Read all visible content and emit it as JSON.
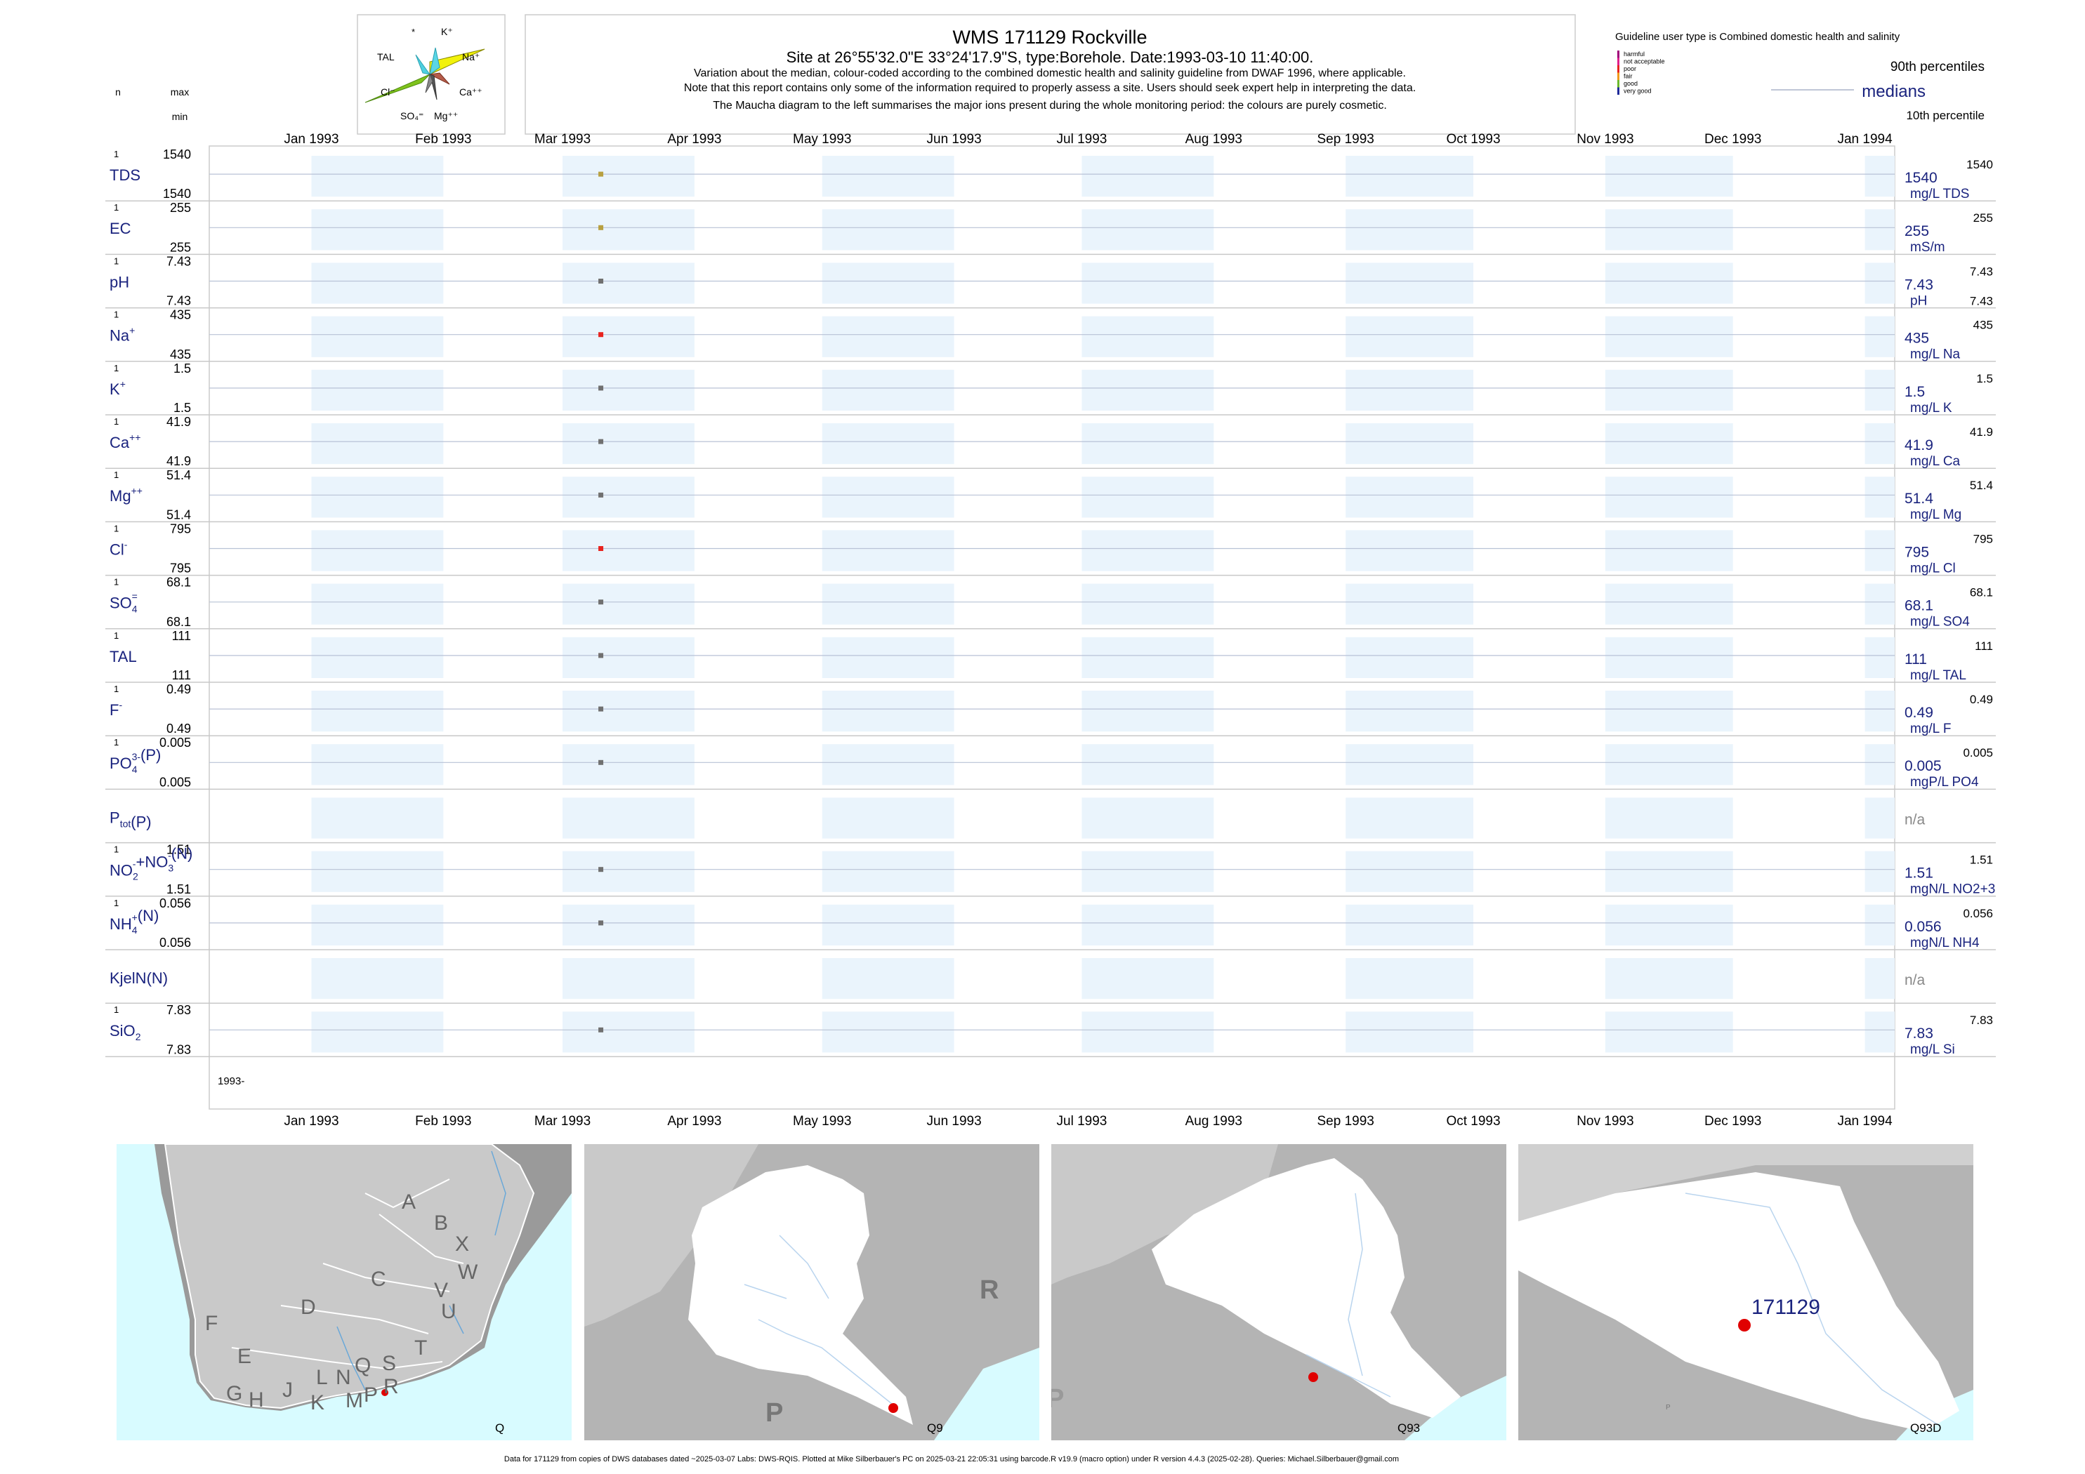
{
  "header": {
    "title": "WMS 171129  Rockville",
    "subtitle": "Site at 26°55'32.0\"E 33°24'17.9\"S, type:Borehole. Date:1993-03-10 11:40:00.",
    "notes": [
      "Variation about the median,  colour-coded according to the combined domestic health and salinity guideline from DWAF 1996, where applicable.",
      "Note that this report contains only some of the information required to properly assess a site. Users should seek expert help in interpreting the data.",
      "The Maucha diagram to the left summarises the major ions present during the whole monitoring period: the colours are purely cosmetic."
    ],
    "col_n": "n",
    "col_max": "max",
    "col_min": "min"
  },
  "maucha": {
    "labels": [
      "*",
      "K⁺",
      "TAL",
      "Na⁺",
      "Cl⁻",
      "Ca⁺⁺",
      "SO₄⁼",
      "Mg⁺⁺"
    ],
    "colors": {
      "na": "#f2f20a",
      "cl": "#7fc31c",
      "k": "#5ad6e6",
      "tal": "#4fd0e0",
      "ca": "#b55c4a",
      "so4": "#555555",
      "mg": "#888888"
    }
  },
  "legend": {
    "guideline_title": "Guideline user type is Combined domestic health and salinity",
    "classes": [
      {
        "label": "harmful",
        "color": "#a0007a"
      },
      {
        "label": "not acceptable",
        "color": "#e0208c"
      },
      {
        "label": "poor",
        "color": "#e8231e"
      },
      {
        "label": "fair",
        "color": "#f09a1a"
      },
      {
        "label": "good",
        "color": "#6cba2c"
      },
      {
        "label": "very good",
        "color": "#1e2a9a"
      }
    ],
    "p90": "90th percentiles",
    "medians": "medians",
    "p10": "10th percentile"
  },
  "chart_data": {
    "type": "scatter",
    "x_axis": {
      "ticks": [
        "Jan 1993",
        "Feb 1993",
        "Mar 1993",
        "Apr 1993",
        "May 1993",
        "Jun 1993",
        "Jul 1993",
        "Aug 1993",
        "Sep 1993",
        "Oct 1993",
        "Nov 1993",
        "Dec 1993",
        "Jan 1994"
      ],
      "range": [
        "1992-12-08",
        "1994-01-08"
      ],
      "bottom_year_label": "1993-"
    },
    "sample_date": "1993-03-10",
    "panels": [
      {
        "label": "TDS",
        "n": "1",
        "max": "1540",
        "min": "1540",
        "value": 1540,
        "right_value": "1540",
        "right_unit": "mg/L TDS",
        "right_max": "1540",
        "right_min": "",
        "color": "#b8a040"
      },
      {
        "label": "EC",
        "n": "1",
        "max": "255",
        "min": "255",
        "value": 255,
        "right_value": "255",
        "right_unit": "mS/m",
        "right_max": "255",
        "right_min": "",
        "color": "#b8a040"
      },
      {
        "label": "pH",
        "n": "1",
        "max": "7.43",
        "min": "7.43",
        "value": 7.43,
        "right_value": "7.43",
        "right_unit": "pH",
        "right_max": "7.43",
        "right_min": "7.43",
        "color": "#707070"
      },
      {
        "label": "Na",
        "sup": "+",
        "n": "1",
        "max": "435",
        "min": "435",
        "value": 435,
        "right_value": "435",
        "right_unit": "mg/L Na",
        "right_max": "435",
        "right_min": "",
        "color": "#e8231e"
      },
      {
        "label": "K",
        "sup": "+",
        "n": "1",
        "max": "1.5",
        "min": "1.5",
        "value": 1.5,
        "right_value": "1.5",
        "right_unit": "mg/L K",
        "right_max": "1.5",
        "right_min": "",
        "color": "#707070"
      },
      {
        "label": "Ca",
        "sup": "++",
        "n": "1",
        "max": "41.9",
        "min": "41.9",
        "value": 41.9,
        "right_value": "41.9",
        "right_unit": "mg/L Ca",
        "right_max": "41.9",
        "right_min": "",
        "color": "#707070"
      },
      {
        "label": "Mg",
        "sup": "++",
        "n": "1",
        "max": "51.4",
        "min": "51.4",
        "value": 51.4,
        "right_value": "51.4",
        "right_unit": "mg/L Mg",
        "right_max": "51.4",
        "right_min": "",
        "color": "#707070"
      },
      {
        "label": "Cl",
        "sup": "-",
        "n": "1",
        "max": "795",
        "min": "795",
        "value": 795,
        "right_value": "795",
        "right_unit": "mg/L Cl",
        "right_max": "795",
        "right_min": "",
        "color": "#e8231e"
      },
      {
        "label": "SO",
        "sub": "4",
        "sup": "=",
        "n": "1",
        "max": "68.1",
        "min": "68.1",
        "value": 68.1,
        "right_value": "68.1",
        "right_unit": "mg/L SO4",
        "right_max": "68.1",
        "right_min": "",
        "color": "#707070"
      },
      {
        "label": "TAL",
        "n": "1",
        "max": "111",
        "min": "111",
        "value": 111,
        "right_value": "111",
        "right_unit": "mg/L TAL",
        "right_max": "111",
        "right_min": "",
        "color": "#707070"
      },
      {
        "label": "F",
        "sup": "-",
        "n": "1",
        "max": "0.49",
        "min": "0.49",
        "value": 0.49,
        "right_value": "0.49",
        "right_unit": "mg/L F",
        "right_max": "0.49",
        "right_min": "",
        "color": "#707070"
      },
      {
        "label": "PO",
        "sub": "4",
        "sup": "3-",
        "tail": "(P)",
        "n": "1",
        "max": "0.005",
        "min": "0.005",
        "value": 0.005,
        "right_value": "0.005",
        "right_unit": "mgP/L PO4",
        "right_max": "0.005",
        "right_min": "",
        "color": "#707070"
      },
      {
        "label": "P",
        "sub": "tot",
        "tail": "(P)",
        "n": "",
        "max": "",
        "min": "",
        "value": null,
        "right_value": "n/a",
        "right_unit": "",
        "right_max": "",
        "right_min": "",
        "color": "#707070"
      },
      {
        "label": "NO",
        "sub": "2",
        "sup": "-",
        "tail2": "+NO",
        "sub2": "3",
        "sup2": "-",
        "tail": "(N)",
        "n": "1",
        "max": "1.51",
        "min": "1.51",
        "value": 1.51,
        "right_value": "1.51",
        "right_unit": "mgN/L NO2+3",
        "right_max": "1.51",
        "right_min": "",
        "color": "#707070"
      },
      {
        "label": "NH",
        "sub": "4",
        "sup": "+",
        "tail": "(N)",
        "n": "1",
        "max": "0.056",
        "min": "0.056",
        "value": 0.056,
        "right_value": "0.056",
        "right_unit": "mgN/L NH4",
        "right_max": "0.056",
        "right_min": "",
        "color": "#707070"
      },
      {
        "label": "KjelN(N)",
        "n": "",
        "max": "",
        "min": "",
        "value": null,
        "right_value": "n/a",
        "right_unit": "",
        "right_max": "",
        "right_min": "",
        "color": "#707070"
      },
      {
        "label": "SiO",
        "sub": "2",
        "n": "1",
        "max": "7.83",
        "min": "7.83",
        "value": 7.83,
        "right_value": "7.83",
        "right_unit": "mg/L Si",
        "right_max": "7.83",
        "right_min": "",
        "color": "#707070"
      }
    ]
  },
  "maps": [
    {
      "caption": "Q",
      "regions": [
        "A",
        "B",
        "X",
        "W",
        "C",
        "V",
        "U",
        "D",
        "F",
        "E",
        "T",
        "S",
        "Q",
        "N",
        "L",
        "J",
        "G",
        "H",
        "K",
        "M",
        "P",
        "R"
      ]
    },
    {
      "caption": "Q9",
      "regions": [
        "R",
        "P"
      ]
    },
    {
      "caption": "Q93",
      "regions": [
        "P"
      ]
    },
    {
      "caption": "Q93D",
      "site_label": "171129",
      "minor_label": "P"
    }
  ],
  "footer": "Data for 171129 from copies of DWS databases dated ~2025-03-07 Labs: DWS-RQIS. Plotted at Mike Silberbauer's PC on 2025-03-21 22:05:31 using barcode.R v19.9 (macro option) under R version 4.4.3 (2025-02-28). Queries: Michael.Silberbauer@gmail.com"
}
